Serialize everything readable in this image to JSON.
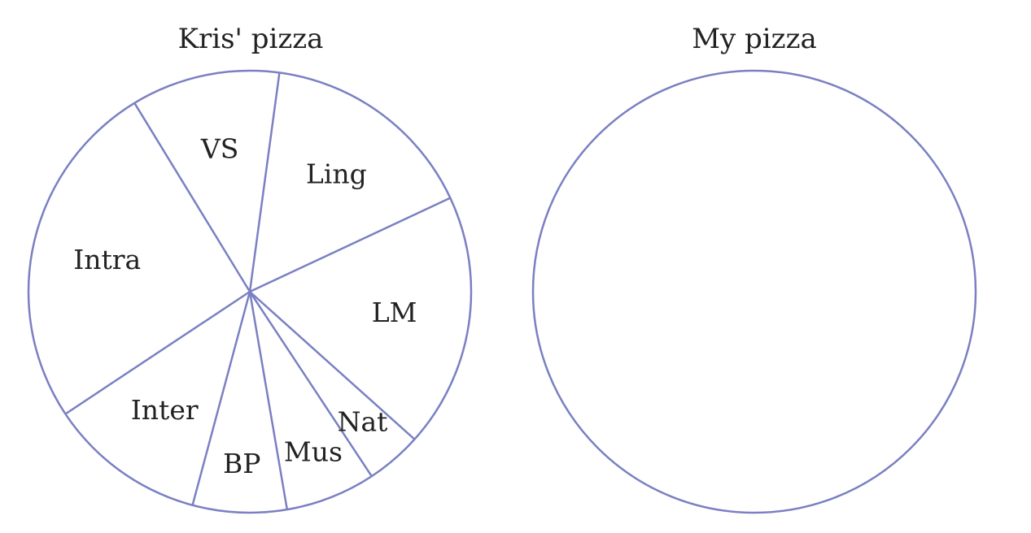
{
  "chart_data": [
    {
      "type": "pie",
      "title": "Kris' pizza",
      "stroke_color": "#7a80c2",
      "slices": [
        {
          "label": "VS",
          "start_deg": 121.4,
          "end_deg": 82.3
        },
        {
          "label": "Ling",
          "start_deg": 82.3,
          "end_deg": 25.1
        },
        {
          "label": "LM",
          "start_deg": 25.1,
          "end_deg": -41.9
        },
        {
          "label": "Nat",
          "start_deg": -41.9,
          "end_deg": -56.6
        },
        {
          "label": "Mus",
          "start_deg": -56.6,
          "end_deg": -80.3
        },
        {
          "label": "BP",
          "start_deg": -80.3,
          "end_deg": -105.0
        },
        {
          "label": "Inter",
          "start_deg": -105.0,
          "end_deg": -146.4
        },
        {
          "label": "Intra",
          "start_deg": -146.4,
          "end_deg": -238.6
        }
      ]
    },
    {
      "type": "pie",
      "title": "My pizza",
      "stroke_color": "#7a80c2",
      "slices": []
    }
  ]
}
